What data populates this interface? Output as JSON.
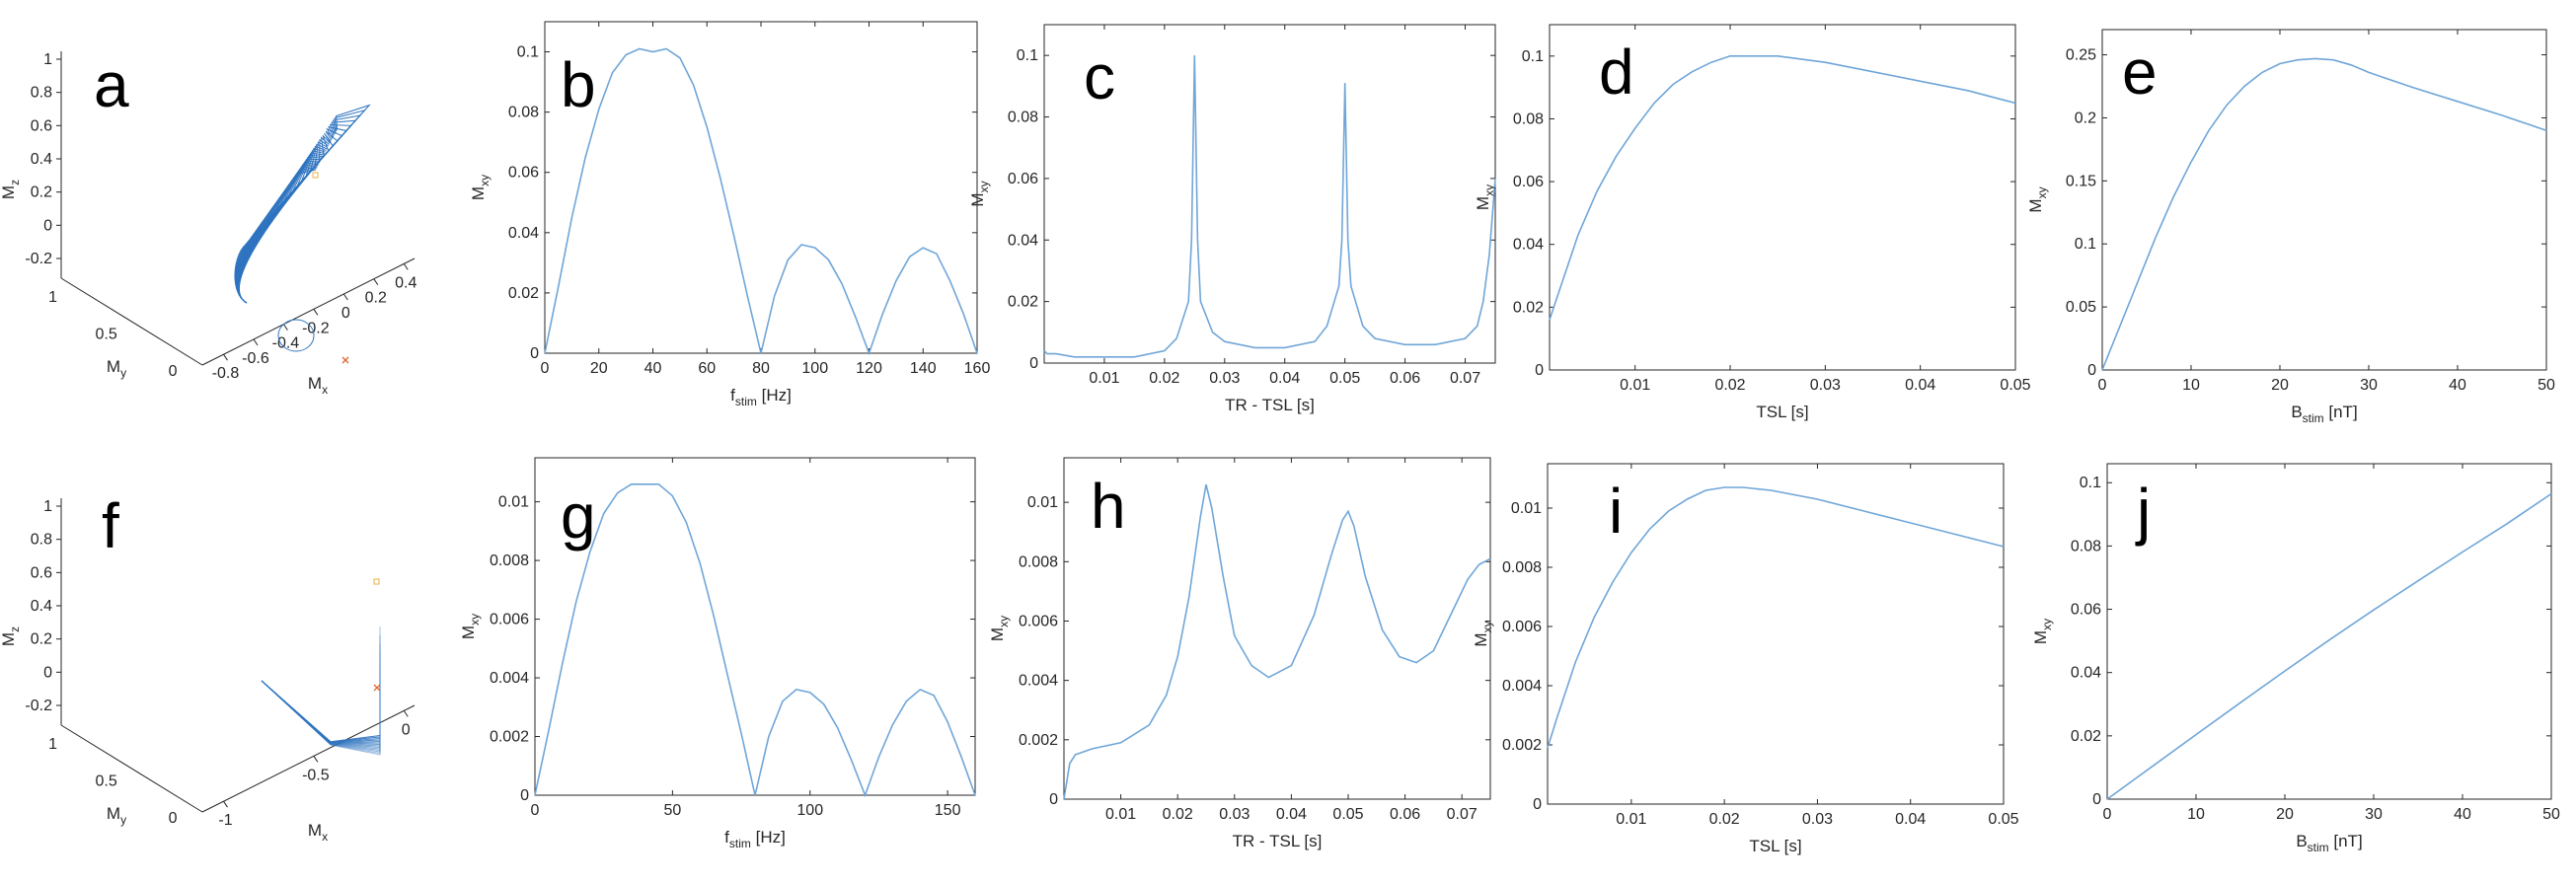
{
  "colors": {
    "curve": "#6fa6d8",
    "wire": "#2f74c0",
    "axis": "#262626",
    "marker_start": "#e8b04a",
    "marker_end": "#e0642a"
  },
  "chart_data": [
    {
      "id": "a",
      "type": "3d-trajectory",
      "panel_label": "a",
      "xlabel": {
        "main": "M",
        "sub": "x"
      },
      "ylabel": {
        "main": "M",
        "sub": "y"
      },
      "zlabel": {
        "main": "M",
        "sub": "z"
      },
      "xticks": [
        "-0.8",
        "-0.6",
        "-0.4",
        "-0.2",
        "0",
        "0.2",
        "0.4"
      ],
      "yticks": [
        "0",
        "0.5",
        "1"
      ],
      "zticks": [
        "-0.2",
        "0",
        "0.2",
        "0.4",
        "0.6",
        "0.8",
        "1"
      ]
    },
    {
      "id": "b",
      "type": "line",
      "panel_label": "b",
      "xlabel": {
        "main": "f",
        "sub": "stim",
        "tail": " [Hz]"
      },
      "ylabel": {
        "main": "M",
        "sub": "xy"
      },
      "xlim": [
        0,
        160
      ],
      "ylim": [
        0,
        0.11
      ],
      "xticks": [
        0,
        20,
        40,
        60,
        80,
        100,
        120,
        140,
        160
      ],
      "yticks": [
        0,
        0.02,
        0.04,
        0.06,
        0.08,
        0.1
      ],
      "x": [
        0,
        5,
        10,
        15,
        20,
        25,
        30,
        35,
        40,
        45,
        50,
        55,
        60,
        65,
        70,
        75,
        80,
        85,
        90,
        95,
        100,
        105,
        110,
        115,
        120,
        125,
        130,
        135,
        140,
        145,
        150,
        155,
        160
      ],
      "y": [
        0,
        0.022,
        0.045,
        0.065,
        0.081,
        0.093,
        0.099,
        0.101,
        0.1,
        0.101,
        0.098,
        0.089,
        0.075,
        0.058,
        0.039,
        0.019,
        0,
        0.019,
        0.031,
        0.036,
        0.035,
        0.031,
        0.023,
        0.012,
        0,
        0.013,
        0.024,
        0.032,
        0.035,
        0.033,
        0.024,
        0.013,
        0
      ]
    },
    {
      "id": "c",
      "type": "line",
      "panel_label": "c",
      "xlabel": {
        "main": "TR - TSL [s]"
      },
      "ylabel": {
        "main": "M",
        "sub": "xy"
      },
      "xlim": [
        0,
        0.075
      ],
      "ylim": [
        0,
        0.11
      ],
      "xticks": [
        0.01,
        0.02,
        0.03,
        0.04,
        0.05,
        0.06,
        0.07
      ],
      "yticks": [
        0,
        0.02,
        0.04,
        0.06,
        0.08,
        0.1
      ],
      "x": [
        0,
        0.0005,
        0.002,
        0.005,
        0.01,
        0.015,
        0.02,
        0.022,
        0.024,
        0.0245,
        0.025,
        0.0255,
        0.026,
        0.028,
        0.03,
        0.035,
        0.0375,
        0.04,
        0.045,
        0.047,
        0.049,
        0.0495,
        0.05,
        0.0505,
        0.051,
        0.053,
        0.055,
        0.06,
        0.0625,
        0.065,
        0.07,
        0.072,
        0.073,
        0.074,
        0.075
      ],
      "y": [
        0.004,
        0.003,
        0.003,
        0.002,
        0.002,
        0.002,
        0.004,
        0.008,
        0.02,
        0.04,
        0.1,
        0.04,
        0.02,
        0.01,
        0.007,
        0.005,
        0.005,
        0.005,
        0.007,
        0.012,
        0.025,
        0.04,
        0.091,
        0.04,
        0.025,
        0.012,
        0.008,
        0.006,
        0.006,
        0.006,
        0.008,
        0.012,
        0.02,
        0.035,
        0.06
      ]
    },
    {
      "id": "d",
      "type": "line",
      "panel_label": "d",
      "xlabel": {
        "main": "TSL [s]"
      },
      "ylabel": {
        "main": "M",
        "sub": "xy"
      },
      "xlim": [
        0.001,
        0.05
      ],
      "ylim": [
        0,
        0.11
      ],
      "xticks": [
        0.01,
        0.02,
        0.03,
        0.04,
        0.05
      ],
      "yticks": [
        0,
        0.02,
        0.04,
        0.06,
        0.08,
        0.1
      ],
      "x": [
        0.001,
        0.002,
        0.004,
        0.006,
        0.008,
        0.01,
        0.012,
        0.014,
        0.016,
        0.018,
        0.02,
        0.022,
        0.025,
        0.03,
        0.035,
        0.04,
        0.045,
        0.05
      ],
      "y": [
        0.016,
        0.025,
        0.043,
        0.057,
        0.068,
        0.077,
        0.085,
        0.091,
        0.095,
        0.098,
        0.1,
        0.1,
        0.1,
        0.098,
        0.095,
        0.092,
        0.089,
        0.085
      ]
    },
    {
      "id": "e",
      "type": "line",
      "panel_label": "e",
      "xlabel": {
        "main": "B",
        "sub": "stim",
        "tail": " [nT]"
      },
      "ylabel": {
        "main": "M",
        "sub": "xy"
      },
      "xlim": [
        0,
        50
      ],
      "ylim": [
        0,
        0.27
      ],
      "xticks": [
        0,
        10,
        20,
        30,
        40,
        50
      ],
      "yticks": [
        0,
        0.05,
        0.1,
        0.15,
        0.2,
        0.25
      ],
      "x": [
        0,
        2,
        4,
        6,
        8,
        10,
        12,
        14,
        16,
        18,
        20,
        22,
        24,
        26,
        28,
        30,
        35,
        40,
        45,
        50
      ],
      "y": [
        0,
        0.035,
        0.07,
        0.105,
        0.137,
        0.165,
        0.19,
        0.21,
        0.225,
        0.236,
        0.243,
        0.246,
        0.247,
        0.246,
        0.242,
        0.236,
        0.224,
        0.213,
        0.202,
        0.19
      ]
    },
    {
      "id": "f",
      "type": "3d-trajectory",
      "panel_label": "f",
      "xlabel": {
        "main": "M",
        "sub": "x"
      },
      "ylabel": {
        "main": "M",
        "sub": "y"
      },
      "zlabel": {
        "main": "M",
        "sub": "z"
      },
      "xticks": [
        "-1",
        "-0.5",
        "0"
      ],
      "yticks": [
        "0",
        "0.5",
        "1"
      ],
      "zticks": [
        "-0.2",
        "0",
        "0.2",
        "0.4",
        "0.6",
        "0.8",
        "1"
      ]
    },
    {
      "id": "g",
      "type": "line",
      "panel_label": "g",
      "xlabel": {
        "main": "f",
        "sub": "stim",
        "tail": " [Hz]"
      },
      "ylabel": {
        "main": "M",
        "sub": "xy"
      },
      "xlim": [
        0,
        160
      ],
      "ylim": [
        0,
        0.0115
      ],
      "xticks": [
        0,
        50,
        100,
        150
      ],
      "yticks": [
        0,
        0.002,
        0.004,
        0.006,
        0.008,
        0.01
      ],
      "x": [
        0,
        5,
        10,
        15,
        20,
        25,
        30,
        35,
        40,
        45,
        50,
        55,
        60,
        65,
        70,
        75,
        80,
        85,
        90,
        95,
        100,
        105,
        110,
        115,
        120,
        125,
        130,
        135,
        140,
        145,
        150,
        155,
        160
      ],
      "y": [
        0,
        0.0022,
        0.0045,
        0.0066,
        0.0083,
        0.0096,
        0.0103,
        0.0106,
        0.0106,
        0.0106,
        0.0102,
        0.0093,
        0.0079,
        0.0061,
        0.0041,
        0.0021,
        0,
        0.002,
        0.0032,
        0.0036,
        0.0035,
        0.0031,
        0.0023,
        0.0012,
        0,
        0.0013,
        0.0024,
        0.0032,
        0.0036,
        0.0034,
        0.0025,
        0.0013,
        0
      ]
    },
    {
      "id": "h",
      "type": "line",
      "panel_label": "h",
      "xlabel": {
        "main": "TR - TSL [s]"
      },
      "ylabel": {
        "main": "M",
        "sub": "xy"
      },
      "xlim": [
        0,
        0.075
      ],
      "ylim": [
        0,
        0.0115
      ],
      "xticks": [
        0.01,
        0.02,
        0.03,
        0.04,
        0.05,
        0.06,
        0.07
      ],
      "yticks": [
        0,
        0.002,
        0.004,
        0.006,
        0.008,
        0.01
      ],
      "x": [
        0,
        0.001,
        0.002,
        0.005,
        0.01,
        0.015,
        0.018,
        0.02,
        0.022,
        0.024,
        0.025,
        0.026,
        0.028,
        0.03,
        0.033,
        0.036,
        0.04,
        0.044,
        0.047,
        0.049,
        0.05,
        0.051,
        0.053,
        0.056,
        0.059,
        0.062,
        0.065,
        0.068,
        0.071,
        0.073,
        0.075
      ],
      "y": [
        0,
        0.0012,
        0.0015,
        0.0017,
        0.0019,
        0.0025,
        0.0035,
        0.0048,
        0.0068,
        0.0095,
        0.0106,
        0.0098,
        0.0075,
        0.0055,
        0.0045,
        0.0041,
        0.0045,
        0.0062,
        0.0082,
        0.0094,
        0.0097,
        0.0092,
        0.0075,
        0.0057,
        0.0048,
        0.0046,
        0.005,
        0.0062,
        0.0074,
        0.0079,
        0.0081
      ]
    },
    {
      "id": "i",
      "type": "line",
      "panel_label": "i",
      "xlabel": {
        "main": "TSL [s]"
      },
      "ylabel": {
        "main": "M",
        "sub": "xy"
      },
      "xlim": [
        0.001,
        0.05
      ],
      "ylim": [
        0,
        0.0115
      ],
      "xticks": [
        0.01,
        0.02,
        0.03,
        0.04,
        0.05
      ],
      "yticks": [
        0,
        0.002,
        0.004,
        0.006,
        0.008,
        0.01
      ],
      "x": [
        0.001,
        0.002,
        0.004,
        0.006,
        0.008,
        0.01,
        0.012,
        0.014,
        0.016,
        0.018,
        0.02,
        0.022,
        0.025,
        0.03,
        0.035,
        0.04,
        0.045,
        0.05
      ],
      "y": [
        0.0019,
        0.0029,
        0.0048,
        0.0063,
        0.0075,
        0.0085,
        0.0093,
        0.0099,
        0.0103,
        0.0106,
        0.0107,
        0.0107,
        0.0106,
        0.0103,
        0.0099,
        0.0095,
        0.0091,
        0.0087
      ]
    },
    {
      "id": "j",
      "type": "line",
      "panel_label": "j",
      "xlabel": {
        "main": "B",
        "sub": "stim",
        "tail": " [nT]"
      },
      "ylabel": {
        "main": "M",
        "sub": "xy"
      },
      "xlim": [
        0,
        50
      ],
      "ylim": [
        0,
        0.106
      ],
      "xticks": [
        0,
        10,
        20,
        30,
        40,
        50
      ],
      "yticks": [
        0,
        0.02,
        0.04,
        0.06,
        0.08,
        0.1
      ],
      "x": [
        0,
        5,
        10,
        15,
        20,
        25,
        30,
        35,
        40,
        45,
        50
      ],
      "y": [
        0,
        0.0102,
        0.0204,
        0.0305,
        0.0405,
        0.0503,
        0.0598,
        0.069,
        0.0781,
        0.087,
        0.0965
      ]
    }
  ]
}
